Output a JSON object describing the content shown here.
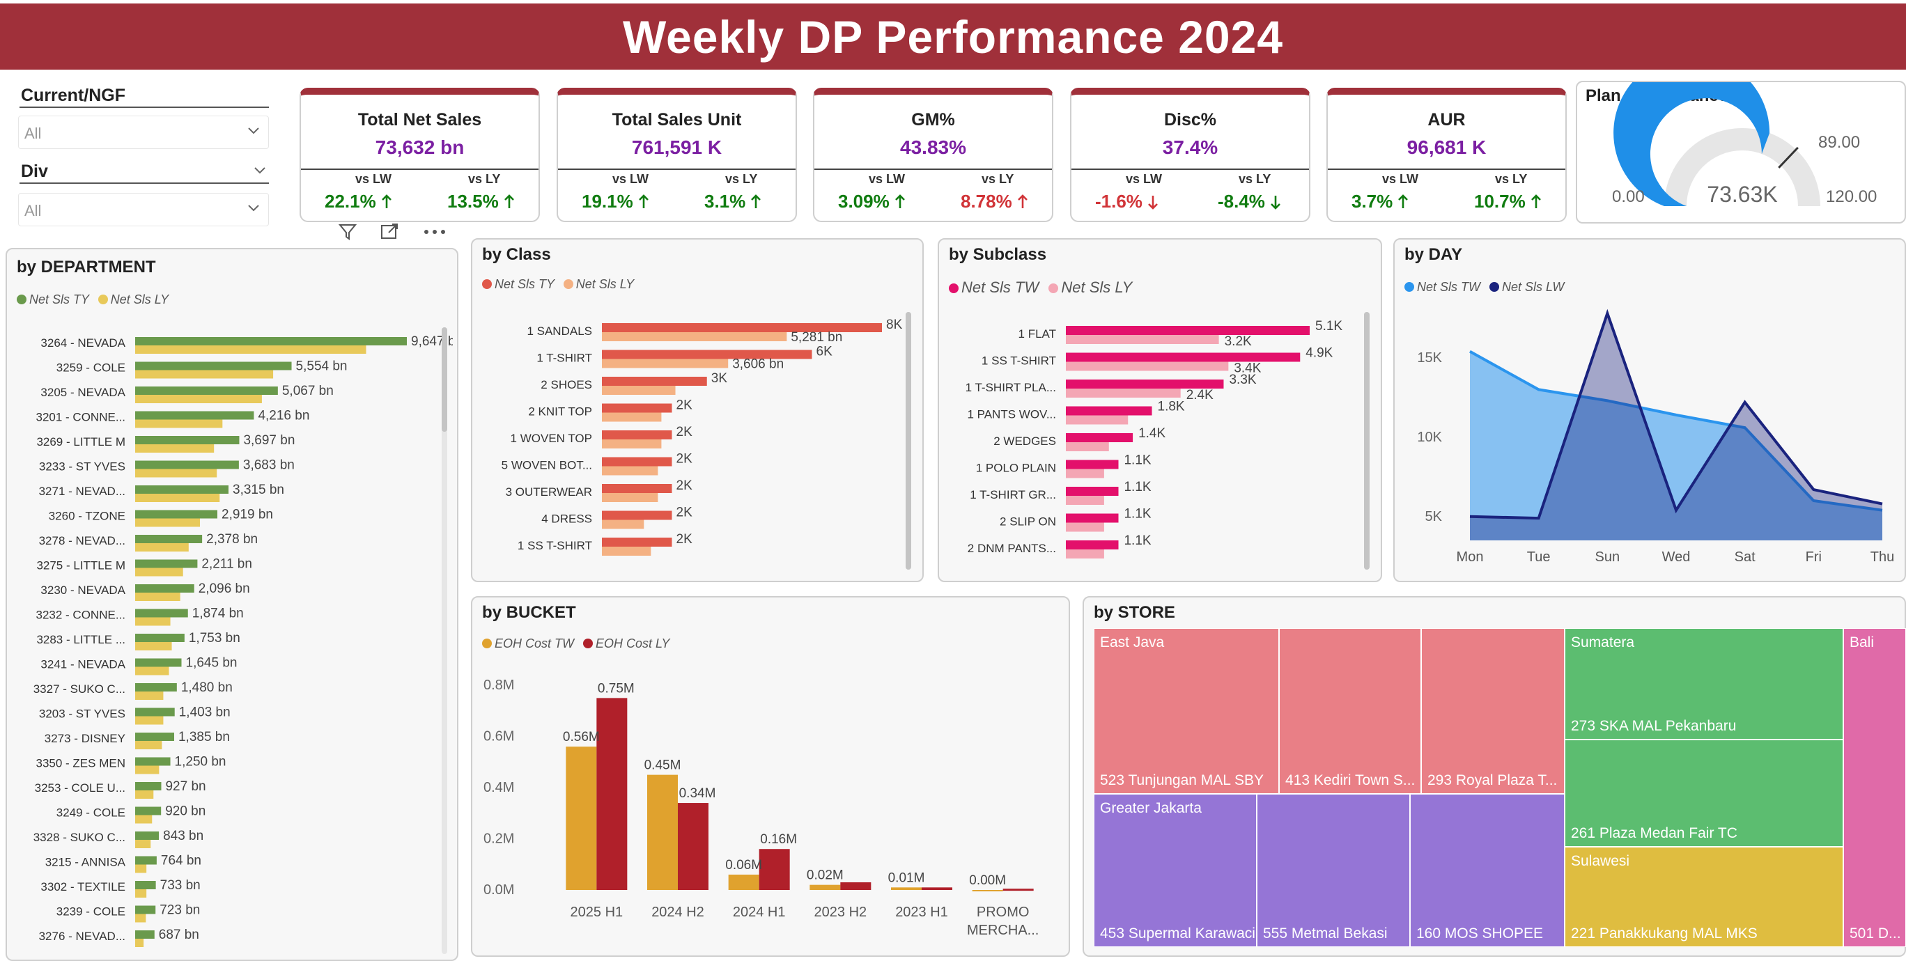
{
  "title": "Weekly DP Performance 2024",
  "slicers": {
    "current_label": "Current/NGF",
    "current_value": "All",
    "div_label": "Div",
    "div_value": "All"
  },
  "kpis": [
    {
      "title": "Total Net Sales",
      "value": "73,632 bn",
      "vs_lw_label": "vs LW",
      "vs_lw": "22.1%",
      "vs_lw_dir": "up",
      "vs_lw_color": "#107c10",
      "vs_ly_label": "vs LY",
      "vs_ly": "13.5%",
      "vs_ly_dir": "up",
      "vs_ly_color": "#107c10"
    },
    {
      "title": "Total Sales Unit",
      "value": "761,591 K",
      "vs_lw_label": "vs LW",
      "vs_lw": "19.1%",
      "vs_lw_dir": "up",
      "vs_lw_color": "#107c10",
      "vs_ly_label": "vs LY",
      "vs_ly": "3.1%",
      "vs_ly_dir": "up",
      "vs_ly_color": "#107c10"
    },
    {
      "title": "GM%",
      "value": "43.83%",
      "vs_lw_label": "vs LW",
      "vs_lw": "3.09%",
      "vs_lw_dir": "up",
      "vs_lw_color": "#107c10",
      "vs_ly_label": "vs LY",
      "vs_ly": "8.78%",
      "vs_ly_dir": "up",
      "vs_ly_color": "#d13438"
    },
    {
      "title": "Disc%",
      "value": "37.4%",
      "vs_lw_label": "vs LW",
      "vs_lw": "-1.6%",
      "vs_lw_dir": "down",
      "vs_lw_color": "#d13438",
      "vs_ly_label": "vs LY",
      "vs_ly": "-8.4%",
      "vs_ly_dir": "down",
      "vs_ly_color": "#107c10"
    },
    {
      "title": "AUR",
      "value": "96,681 K",
      "vs_lw_label": "vs LW",
      "vs_lw": "3.7%",
      "vs_lw_dir": "up",
      "vs_lw_color": "#107c10",
      "vs_ly_label": "vs LY",
      "vs_ly": "10.7%",
      "vs_ly_dir": "up",
      "vs_ly_color": "#107c10"
    }
  ],
  "plan": {
    "title": "Plan Performance",
    "value_label": "73.63K",
    "min_label": "0.00",
    "max_label": "120.00",
    "target_label": "89.00",
    "value": 73.63,
    "min": 0,
    "max": 120,
    "target": 89
  },
  "colors": {
    "header": "#a0303a",
    "ty": "#6a9a4c",
    "ly": "#e8c95a",
    "class_ty": "#e0584a",
    "class_ly": "#f4b183",
    "sub_tw": "#e3106b",
    "sub_ly": "#f4a6b4",
    "day_tw": "#2b95ee",
    "day_lw": "#1a237e",
    "bucket_tw": "#e0a22e",
    "bucket_ly": "#b0202a"
  },
  "chart_data": [
    {
      "id": "department",
      "type": "bar",
      "title": "by DEPARTMENT",
      "orientation": "horizontal",
      "categories": [
        "3264 - NEVADA",
        "3259 - COLE",
        "3205 - NEVADA",
        "3201 - CONNE...",
        "3269 - LITTLE M",
        "3233 - ST YVES",
        "3271 - NEVAD...",
        "3260 - TZONE",
        "3278 - NEVAD...",
        "3275 - LITTLE M",
        "3230 - NEVADA",
        "3232 - CONNE...",
        "3283 - LITTLE ...",
        "3241 - NEVADA",
        "3327 - SUKO C...",
        "3203 - ST YVES",
        "3273 - DISNEY",
        "3350 - ZES MEN",
        "3253 - COLE U...",
        "3249 - COLE",
        "3328 - SUKO C...",
        "3215 - ANNISA",
        "3302 - TEXTILE",
        "3239 - COLE",
        "3276 - NEVAD..."
      ],
      "series": [
        {
          "name": "Net Sls TY",
          "values": [
            9647,
            5554,
            5067,
            4216,
            3697,
            3683,
            3315,
            2919,
            2378,
            2211,
            2096,
            1874,
            1753,
            1645,
            1480,
            1403,
            1385,
            1250,
            927,
            920,
            843,
            764,
            733,
            723,
            687
          ]
        },
        {
          "name": "Net Sls LY",
          "values": [
            8200,
            4900,
            4500,
            3100,
            2800,
            2900,
            3000,
            2300,
            1900,
            1700,
            1600,
            1250,
            1300,
            1200,
            1000,
            1000,
            950,
            850,
            650,
            600,
            550,
            400,
            400,
            380,
            300
          ]
        }
      ],
      "data_labels": [
        "9,647 bn",
        "5,554 bn",
        "5,067 bn",
        "4,216 bn",
        "3,697 bn",
        "3,683 bn",
        "3,315 bn",
        "2,919 bn",
        "2,378 bn",
        "2,211 bn",
        "2,096 bn",
        "1,874 bn",
        "1,753 bn",
        "1,645 bn",
        "1,480 bn",
        "1,403 bn",
        "1,385 bn",
        "1,250 bn",
        "927 bn",
        "920 bn",
        "843 bn",
        "764 bn",
        "733 bn",
        "723 bn",
        "687 bn"
      ]
    },
    {
      "id": "class",
      "type": "bar",
      "title": "by Class",
      "orientation": "horizontal",
      "categories": [
        "1 SANDALS",
        "1 T-SHIRT",
        "2 SHOES",
        "2 KNIT TOP",
        "1 WOVEN TOP",
        "5 WOVEN BOT...",
        "3 OUTERWEAR",
        "4 DRESS",
        "1 SS T-SHIRT"
      ],
      "series": [
        {
          "name": "Net Sls TY",
          "values": [
            8000,
            6000,
            3000,
            2000,
            2000,
            2000,
            2000,
            2000,
            2000
          ]
        },
        {
          "name": "Net Sls LY",
          "values": [
            5281,
            3606,
            2100,
            1700,
            1700,
            1600,
            1600,
            1200,
            1400
          ]
        }
      ],
      "data_labels": [
        "8K",
        "6K",
        "3K",
        "2K",
        "2K",
        "2K",
        "2K",
        "2K",
        "2K"
      ],
      "ly_labels": [
        "5,281 bn",
        "3,606 bn"
      ]
    },
    {
      "id": "subclass",
      "type": "bar",
      "title": "by Subclass",
      "orientation": "horizontal",
      "categories": [
        "1 FLAT",
        "1 SS T-SHIRT",
        "1 T-SHIRT PLA...",
        "1 PANTS WOV...",
        "2 WEDGES",
        "1 POLO PLAIN",
        "1 T-SHIRT GR...",
        "2 SLIP ON",
        "2 DNM PANTS..."
      ],
      "series": [
        {
          "name": "Net Sls TW",
          "values": [
            5.1,
            4.9,
            3.3,
            1.8,
            1.4,
            1.1,
            1.1,
            1.1,
            1.1
          ]
        },
        {
          "name": "Net Sls LY",
          "values": [
            3.2,
            3.4,
            2.4,
            1.3,
            0.9,
            0.8,
            0.8,
            0.8,
            0.8
          ]
        }
      ],
      "tw_labels": [
        "5.1K",
        "4.9K",
        "3.3K",
        "1.8K",
        "1.4K",
        "1.1K",
        "1.1K",
        "1.1K",
        "1.1K"
      ],
      "ly_labels": [
        "3.2K",
        "3.4K",
        "2.4K"
      ]
    },
    {
      "id": "day",
      "type": "area",
      "title": "by DAY",
      "categories": [
        "Mon",
        "Tue",
        "Sun",
        "Wed",
        "Sat",
        "Fri",
        "Thu"
      ],
      "series": [
        {
          "name": "Net Sls TW",
          "values": [
            15400,
            13000,
            12300,
            11400,
            10600,
            6000,
            5400
          ]
        },
        {
          "name": "Net Sls LW",
          "values": [
            5000,
            4900,
            17800,
            5400,
            12200,
            6700,
            5800
          ]
        }
      ],
      "yticks": [
        "15K",
        "10K",
        "5K"
      ],
      "ylim": [
        3500,
        18500
      ]
    },
    {
      "id": "bucket",
      "type": "bar",
      "title": "by BUCKET",
      "categories": [
        "2025 H1",
        "2024 H2",
        "2024 H1",
        "2023 H2",
        "2023 H1",
        "PROMO MERCHA..."
      ],
      "series": [
        {
          "name": "EOH Cost TW",
          "values": [
            0.56,
            0.45,
            0.06,
            0.02,
            0.01,
            0.0
          ]
        },
        {
          "name": "EOH Cost LY",
          "values": [
            0.75,
            0.34,
            0.16,
            0.03,
            0.01,
            0.005
          ]
        }
      ],
      "tw_labels": [
        "0.56M",
        "0.45M",
        "0.06M",
        "0.02M",
        "0.01M",
        "0.00M"
      ],
      "ly_labels": [
        "0.75M",
        "0.34M",
        "0.16M"
      ],
      "yticks": [
        "0.8M",
        "0.6M",
        "0.4M",
        "0.2M",
        "0.0M"
      ],
      "ylim": [
        0,
        0.8
      ]
    }
  ],
  "store": {
    "title": "by STORE",
    "groups": [
      {
        "name": "East Java",
        "color": "#e97f86",
        "stores": [
          "523 Tunjungan MAL SBY",
          "413 Kediri Town S...",
          "293 Royal Plaza T..."
        ]
      },
      {
        "name": "Greater Jakarta",
        "color": "#9575d6",
        "stores": [
          "453 Supermal Karawaci",
          "555 Metmal Bekasi",
          "160 MOS SHOPEE"
        ]
      },
      {
        "name": "Sumatera",
        "color": "#5cbd70",
        "stores": [
          "273 SKA MAL Pekanbaru",
          "261 Plaza Medan Fair TC"
        ]
      },
      {
        "name": "Sulawesi",
        "color": "#dfbd40",
        "stores": [
          "221 Panakkukang MAL MKS"
        ]
      },
      {
        "name": "Bali",
        "color": "#e06aa8",
        "stores": [
          "501 D..."
        ]
      }
    ]
  }
}
